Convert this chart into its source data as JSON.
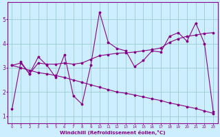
{
  "xlabel": "Windchill (Refroidissement éolien,°C)",
  "x_data": [
    0,
    1,
    2,
    3,
    4,
    5,
    6,
    7,
    8,
    9,
    10,
    11,
    12,
    13,
    14,
    15,
    16,
    17,
    18,
    19,
    20,
    21,
    22,
    23
  ],
  "y_jagged": [
    1.3,
    3.25,
    2.75,
    3.45,
    3.1,
    2.6,
    3.55,
    1.85,
    1.5,
    3.1,
    5.3,
    4.05,
    3.8,
    3.7,
    3.05,
    3.3,
    3.7,
    3.65,
    4.3,
    4.45,
    4.1,
    4.85,
    4.0,
    1.2
  ],
  "y_rising": [
    3.1,
    3.2,
    2.75,
    3.2,
    3.15,
    3.15,
    3.2,
    3.15,
    3.2,
    3.35,
    3.5,
    3.55,
    3.6,
    3.62,
    3.65,
    3.7,
    3.75,
    3.82,
    4.05,
    4.2,
    4.3,
    4.35,
    4.42,
    4.45
  ],
  "y_descending": [
    3.1,
    3.0,
    2.9,
    2.8,
    2.75,
    2.68,
    2.6,
    2.5,
    2.4,
    2.3,
    2.2,
    2.1,
    2.0,
    1.95,
    1.88,
    1.8,
    1.72,
    1.65,
    1.55,
    1.48,
    1.4,
    1.32,
    1.22,
    1.12
  ],
  "line_color": "#880088",
  "marker": "*",
  "bg_color": "#cceeff",
  "grid_color": "#99cccc",
  "ylim": [
    0.7,
    5.7
  ],
  "xlim": [
    -0.5,
    23.5
  ],
  "yticks": [
    1,
    2,
    3,
    4,
    5
  ],
  "xticks": [
    0,
    1,
    2,
    3,
    4,
    5,
    6,
    7,
    8,
    9,
    10,
    11,
    12,
    13,
    14,
    15,
    16,
    17,
    18,
    19,
    20,
    21,
    22,
    23
  ]
}
